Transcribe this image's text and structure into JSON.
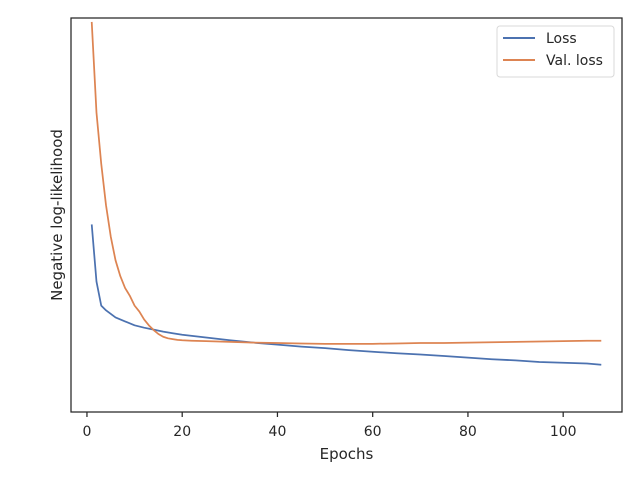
{
  "chart_data": {
    "type": "line",
    "title": "",
    "xlabel": "Epochs",
    "ylabel": "Negative log-likelihood",
    "xlim": [
      -3.35,
      112.35
    ],
    "ylim": [
      0,
      1
    ],
    "xticks": [
      0,
      20,
      40,
      60,
      80,
      100
    ],
    "yticks_shown": false,
    "grid": false,
    "legend_position": "top-right",
    "series": [
      {
        "name": "Loss",
        "color": "#4c72b0",
        "x": [
          1,
          2,
          3,
          4,
          6,
          8,
          10,
          12,
          14,
          16,
          18,
          20,
          25,
          30,
          35,
          40,
          45,
          50,
          55,
          60,
          65,
          70,
          75,
          80,
          85,
          90,
          95,
          100,
          105,
          108
        ],
        "y": [
          0.476,
          0.331,
          0.27,
          0.258,
          0.24,
          0.23,
          0.22,
          0.214,
          0.209,
          0.204,
          0.2,
          0.196,
          0.189,
          0.182,
          0.176,
          0.171,
          0.166,
          0.162,
          0.157,
          0.153,
          0.149,
          0.146,
          0.142,
          0.138,
          0.134,
          0.131,
          0.127,
          0.125,
          0.123,
          0.12
        ]
      },
      {
        "name": "Val. loss",
        "color": "#dd8452",
        "x": [
          1,
          2,
          3,
          4,
          5,
          6,
          7,
          8,
          9,
          10,
          11,
          12,
          13,
          14,
          15,
          16,
          17,
          18,
          19,
          20,
          22,
          25,
          30,
          35,
          40,
          45,
          50,
          55,
          60,
          65,
          70,
          75,
          80,
          85,
          90,
          95,
          100,
          105,
          108
        ],
        "y": [
          0.99,
          0.76,
          0.63,
          0.525,
          0.445,
          0.385,
          0.345,
          0.315,
          0.295,
          0.27,
          0.255,
          0.235,
          0.22,
          0.208,
          0.198,
          0.191,
          0.187,
          0.185,
          0.183,
          0.182,
          0.181,
          0.18,
          0.178,
          0.176,
          0.175,
          0.174,
          0.173,
          0.173,
          0.173,
          0.174,
          0.175,
          0.175,
          0.176,
          0.177,
          0.178,
          0.179,
          0.18,
          0.181,
          0.181
        ]
      }
    ]
  }
}
